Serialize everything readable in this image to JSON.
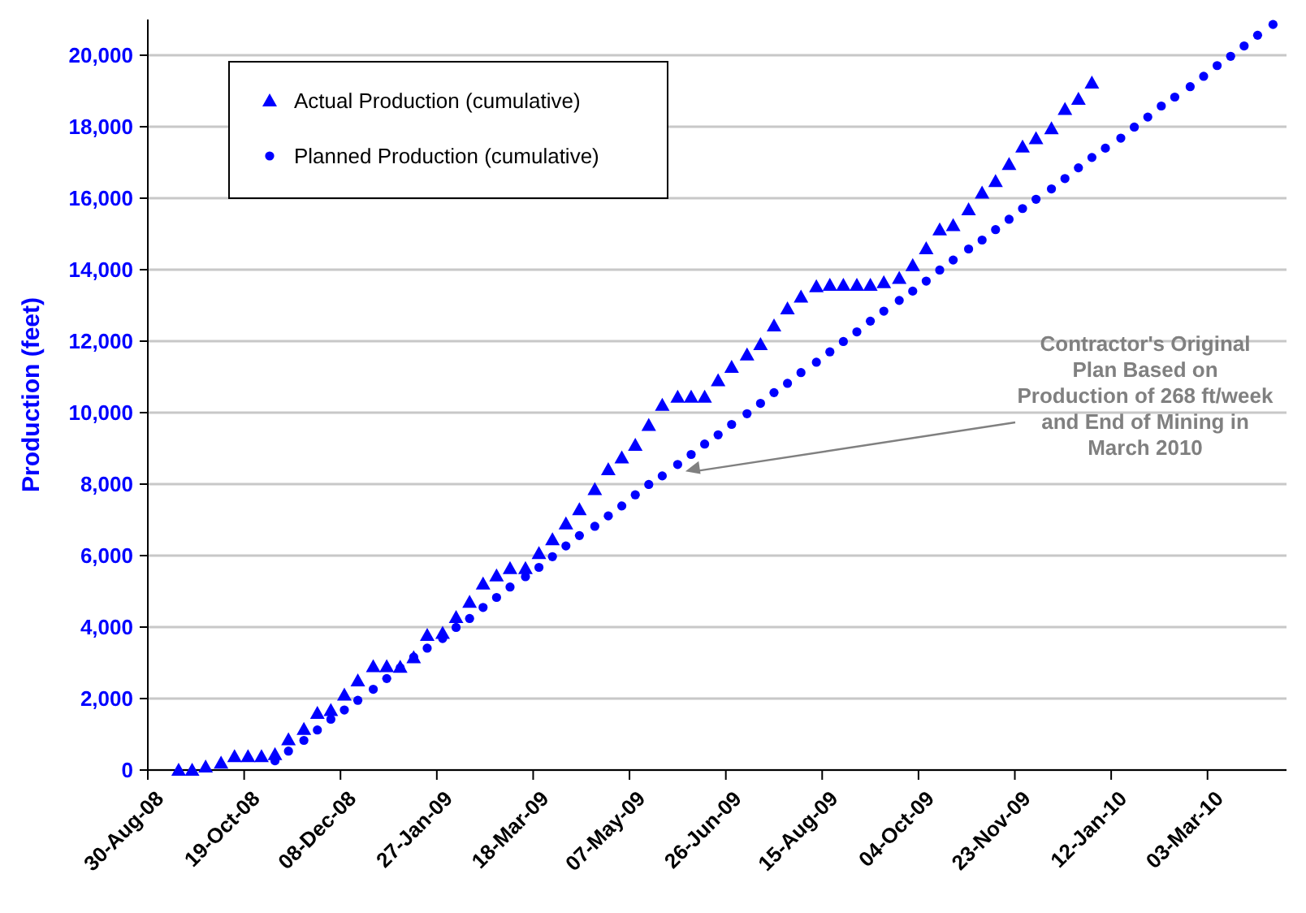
{
  "chart_data": {
    "type": "scatter",
    "ylabel": "Production (feet)",
    "x": [
      "2008-09-15",
      "2008-09-22",
      "2008-09-29",
      "2008-10-07",
      "2008-10-14",
      "2008-10-21",
      "2008-10-28",
      "2008-11-04",
      "2008-11-11",
      "2008-11-19",
      "2008-11-26",
      "2008-12-03",
      "2008-12-10",
      "2008-12-17",
      "2008-12-25",
      "2009-01-01",
      "2009-01-08",
      "2009-01-15",
      "2009-01-22",
      "2009-01-30",
      "2009-02-06",
      "2009-02-13",
      "2009-02-20",
      "2009-02-27",
      "2009-03-06",
      "2009-03-14",
      "2009-03-21",
      "2009-03-28",
      "2009-04-04",
      "2009-04-11",
      "2009-04-19",
      "2009-04-26",
      "2009-05-03",
      "2009-05-10",
      "2009-05-17",
      "2009-05-24",
      "2009-06-01",
      "2009-06-08",
      "2009-06-15",
      "2009-06-22",
      "2009-06-29",
      "2009-07-07",
      "2009-07-14",
      "2009-07-21",
      "2009-07-28",
      "2009-08-04",
      "2009-08-12",
      "2009-08-19",
      "2009-08-26",
      "2009-09-02",
      "2009-09-09",
      "2009-09-16",
      "2009-09-24",
      "2009-10-01",
      "2009-10-08",
      "2009-10-15",
      "2009-10-22",
      "2009-10-30",
      "2009-11-06",
      "2009-11-13",
      "2009-11-20",
      "2009-11-27",
      "2009-12-04",
      "2009-12-12",
      "2009-12-19",
      "2009-12-26",
      "2010-01-02",
      "2010-01-09",
      "2010-01-17",
      "2010-01-24",
      "2010-01-31",
      "2010-02-07",
      "2010-02-14",
      "2010-02-22",
      "2010-03-01",
      "2010-03-08",
      "2010-03-15",
      "2010-03-22",
      "2010-03-29",
      "2010-04-06"
    ],
    "series": [
      {
        "name": "Actual Production (cumulative)",
        "color": "#0000ff",
        "marker": "triangle",
        "values": [
          0,
          0,
          90,
          200,
          380,
          380,
          380,
          440,
          850,
          1140,
          1590,
          1670,
          2100,
          2500,
          2900,
          2900,
          2880,
          3150,
          3770,
          3830,
          4270,
          4700,
          5210,
          5440,
          5640,
          5640,
          6060,
          6450,
          6890,
          7290,
          7850,
          8410,
          8740,
          9090,
          9650,
          10210,
          10440,
          10440,
          10440,
          10900,
          11270,
          11620,
          11910,
          12430,
          12910,
          13240,
          13530,
          13570,
          13570,
          13570,
          13570,
          13640,
          13760,
          14120,
          14590,
          15120,
          15240,
          15680,
          16150,
          16470,
          16950,
          17440,
          17670,
          17950,
          18490,
          18770,
          19230,
          null,
          null,
          null,
          null,
          null,
          null,
          null,
          null,
          null,
          null,
          null,
          null,
          null
        ]
      },
      {
        "name": "Planned Production (cumulative)",
        "color": "#0000ff",
        "marker": "circle",
        "values": [
          null,
          null,
          null,
          null,
          null,
          null,
          null,
          260,
          530,
          830,
          1120,
          1420,
          1680,
          1950,
          2260,
          2560,
          2860,
          3160,
          3410,
          3680,
          3990,
          4240,
          4550,
          4830,
          5120,
          5410,
          5670,
          5970,
          6270,
          6560,
          6820,
          7110,
          7390,
          7700,
          7990,
          8230,
          8550,
          8830,
          9120,
          9380,
          9670,
          9970,
          10260,
          10560,
          10820,
          11120,
          11410,
          11700,
          11990,
          12260,
          12560,
          12840,
          13140,
          13400,
          13680,
          13990,
          14270,
          14580,
          14830,
          15120,
          15410,
          15710,
          15970,
          16260,
          16550,
          16850,
          17140,
          17400,
          17680,
          17990,
          18270,
          18580,
          18830,
          19120,
          19410,
          19710,
          19970,
          20260,
          20560,
          20860
        ]
      }
    ],
    "xlim": [
      "2008-08-30",
      "2010-04-13"
    ],
    "xticks": [
      {
        "value": "2008-08-30",
        "label": "30-Aug-08"
      },
      {
        "value": "2008-10-19",
        "label": "19-Oct-08"
      },
      {
        "value": "2008-12-08",
        "label": "08-Dec-08"
      },
      {
        "value": "2009-01-27",
        "label": "27-Jan-09"
      },
      {
        "value": "2009-03-18",
        "label": "18-Mar-09"
      },
      {
        "value": "2009-05-07",
        "label": "07-May-09"
      },
      {
        "value": "2009-06-26",
        "label": "26-Jun-09"
      },
      {
        "value": "2009-08-15",
        "label": "15-Aug-09"
      },
      {
        "value": "2009-10-04",
        "label": "04-Oct-09"
      },
      {
        "value": "2009-11-23",
        "label": "23-Nov-09"
      },
      {
        "value": "2010-01-12",
        "label": "12-Jan-10"
      },
      {
        "value": "2010-03-03",
        "label": "03-Mar-10"
      }
    ],
    "ylim": [
      0,
      21000
    ],
    "yticks": [
      {
        "value": 0,
        "label": "0"
      },
      {
        "value": 2000,
        "label": "2,000"
      },
      {
        "value": 4000,
        "label": "4,000"
      },
      {
        "value": 6000,
        "label": "6,000"
      },
      {
        "value": 8000,
        "label": "8,000"
      },
      {
        "value": 10000,
        "label": "10,000"
      },
      {
        "value": 12000,
        "label": "12,000"
      },
      {
        "value": 14000,
        "label": "14,000"
      },
      {
        "value": 16000,
        "label": "16,000"
      },
      {
        "value": 18000,
        "label": "18,000"
      },
      {
        "value": 20000,
        "label": "20,000"
      }
    ],
    "grid": "y",
    "legend": "top left",
    "annotations": [
      {
        "text": "Contractor's Original\nPlan Based on\nProduction of 268 ft/week\nand End of Mining in\nMarch 2010",
        "x": "2009-06-05",
        "y": 8360
      }
    ]
  }
}
